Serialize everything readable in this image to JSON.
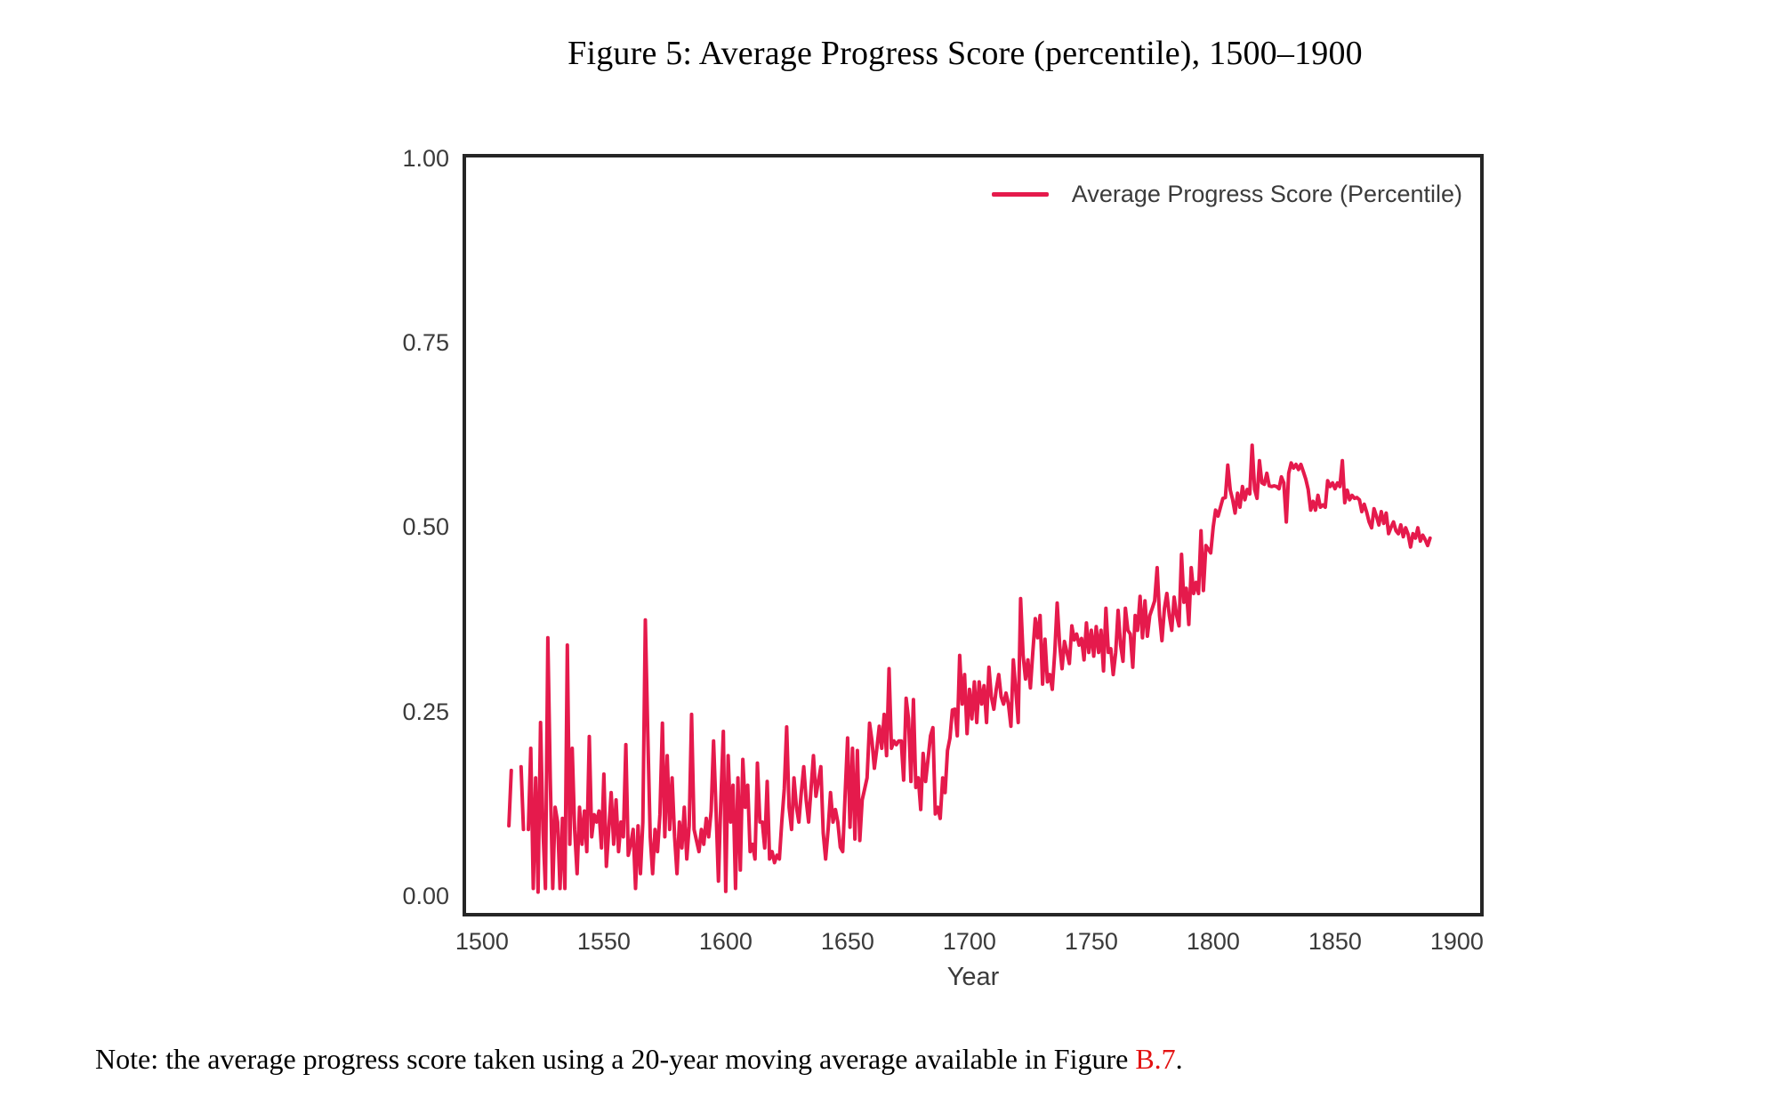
{
  "title": "Figure 5: Average Progress Score (percentile), 1500–1900",
  "note": {
    "prefix": "Note: the average progress score taken using a 20-year moving average available in Figure ",
    "link": "B.7",
    "suffix": "."
  },
  "colors": {
    "line": "#e51a4c",
    "spine": "#262626",
    "tick_label": "#3b3b3b",
    "link_red": "#e31212",
    "background": "#ffffff"
  },
  "chart_data": {
    "type": "line",
    "title": "Figure 5: Average Progress Score (percentile), 1500–1900",
    "xlabel": "Year",
    "ylabel": "",
    "grid": false,
    "xlim": [
      1492,
      1911
    ],
    "ylim": [
      -0.028,
      1.006
    ],
    "x_ticks": [
      1500,
      1550,
      1600,
      1650,
      1700,
      1750,
      1800,
      1850,
      1900
    ],
    "y_ticks": [
      0.0,
      0.25,
      0.5,
      0.75,
      1.0
    ],
    "y_tick_labels": [
      "0.00",
      "0.25",
      "0.50",
      "0.75",
      "1.00"
    ],
    "legend": {
      "position": "upper right",
      "frame": false,
      "entries": [
        {
          "label": "Average Progress Score (Percentile)",
          "color": "#e51a4c"
        }
      ]
    },
    "series": [
      {
        "name": "Average Progress Score (Percentile)",
        "color": "#e51a4c",
        "line_width": 4,
        "segments": [
          {
            "start_year": 1511,
            "step": 1,
            "values": [
              0.095,
              0.17
            ]
          },
          {
            "start_year": 1516,
            "step": 1,
            "values": [
              0.175,
              0.09
            ]
          },
          {
            "start_year": 1519,
            "step": 1,
            "values": [
              0.09,
              0.2,
              0.01,
              0.16,
              0.005,
              0.235,
              0.09,
              0.01,
              0.35,
              0.16,
              0.01,
              0.12,
              0.1,
              0.01,
              0.105,
              0.01,
              0.34,
              0.07,
              0.2,
              0.09,
              0.03,
              0.12,
              0.07,
              0.115,
              0.06,
              0.216,
              0.08,
              0.11,
              0.1,
              0.115,
              0.065,
              0.165,
              0.04,
              0.09,
              0.14,
              0.07,
              0.13,
              0.06,
              0.1,
              0.08,
              0.205,
              0.055,
              0.07,
              0.09,
              0.01,
              0.095,
              0.03,
              0.1,
              0.374,
              0.222,
              0.08,
              0.03,
              0.09,
              0.06,
              0.11,
              0.234,
              0.08,
              0.19,
              0.09,
              0.16,
              0.08,
              0.03,
              0.1,
              0.065,
              0.12,
              0.05,
              0.095,
              0.246,
              0.09,
              0.075,
              0.06,
              0.09,
              0.07,
              0.105,
              0.08,
              0.115,
              0.21,
              0.12,
              0.02,
              0.13,
              0.223,
              0.006,
              0.19,
              0.1,
              0.15,
              0.01,
              0.16,
              0.035,
              0.185,
              0.12,
              0.15,
              0.06,
              0.07,
              0.05,
              0.18,
              0.1,
              0.1,
              0.065,
              0.155,
              0.05,
              0.06,
              0.045,
              0.055,
              0.05,
              0.1,
              0.145,
              0.229,
              0.12,
              0.09,
              0.16,
              0.12,
              0.1,
              0.14,
              0.175,
              0.13,
              0.1,
              0.145,
              0.19,
              0.135,
              0.155,
              0.175,
              0.085,
              0.05,
              0.09,
              0.14,
              0.1,
              0.117,
              0.1,
              0.066,
              0.06,
              0.14,
              0.214,
              0.093,
              0.2,
              0.077,
              0.197,
              0.075,
              0.13,
              0.145,
              0.16,
              0.234,
              0.21,
              0.173,
              0.2,
              0.23,
              0.2,
              0.246,
              0.19,
              0.308,
              0.2,
              0.21,
              0.205,
              0.21,
              0.21,
              0.157,
              0.268,
              0.24,
              0.155,
              0.266,
              0.147,
              0.16,
              0.117,
              0.193,
              0.155,
              0.185,
              0.217,
              0.228,
              0.111,
              0.12,
              0.105,
              0.16,
              0.14,
              0.197,
              0.214,
              0.252,
              0.253,
              0.217,
              0.326,
              0.26,
              0.3,
              0.22,
              0.28,
              0.24,
              0.29,
              0.235,
              0.29,
              0.26,
              0.285,
              0.235,
              0.31,
              0.27,
              0.253,
              0.28,
              0.3,
              0.27,
              0.26,
              0.275,
              0.26,
              0.23,
              0.32,
              0.28,
              0.235,
              0.403,
              0.326,
              0.294,
              0.32,
              0.282,
              0.33,
              0.376,
              0.35,
              0.38,
              0.287,
              0.348,
              0.29,
              0.3,
              0.28,
              0.33,
              0.397,
              0.34,
              0.308,
              0.345,
              0.33,
              0.315,
              0.366,
              0.347,
              0.355,
              0.34,
              0.349,
              0.32,
              0.37,
              0.33,
              0.36,
              0.325,
              0.365,
              0.33,
              0.36,
              0.305,
              0.39,
              0.33,
              0.335,
              0.3,
              0.33,
              0.387,
              0.34,
              0.318,
              0.39,
              0.36,
              0.355,
              0.31,
              0.38,
              0.36,
              0.406,
              0.35,
              0.4,
              0.352,
              0.38,
              0.39,
              0.4,
              0.445,
              0.38,
              0.346,
              0.39,
              0.41,
              0.38,
              0.36,
              0.405,
              0.38,
              0.366,
              0.463,
              0.398,
              0.417,
              0.368,
              0.445,
              0.41,
              0.425,
              0.41,
              0.495,
              0.414,
              0.475,
              0.47,
              0.465,
              0.5,
              0.523,
              0.515,
              0.527,
              0.539,
              0.54,
              0.584,
              0.55,
              0.537,
              0.519,
              0.546,
              0.527,
              0.555,
              0.537,
              0.551,
              0.545,
              0.611,
              0.551,
              0.539,
              0.59,
              0.56,
              0.558,
              0.573,
              0.556,
              0.555,
              0.556,
              0.555,
              0.552,
              0.568,
              0.56,
              0.507,
              0.573,
              0.587,
              0.58,
              0.585,
              0.578,
              0.585,
              0.575,
              0.565,
              0.551,
              0.523,
              0.535,
              0.523,
              0.543,
              0.527,
              0.53,
              0.527,
              0.563,
              0.555,
              0.56,
              0.552,
              0.56,
              0.555,
              0.59,
              0.533,
              0.55,
              0.537,
              0.543,
              0.539,
              0.54,
              0.537,
              0.521,
              0.531,
              0.52,
              0.507,
              0.499,
              0.525,
              0.515,
              0.503,
              0.521,
              0.505,
              0.519,
              0.491,
              0.5,
              0.507,
              0.495,
              0.491,
              0.503,
              0.487,
              0.499,
              0.49,
              0.473,
              0.491,
              0.485,
              0.499,
              0.481,
              0.489,
              0.483,
              0.475,
              0.485
            ]
          }
        ]
      }
    ]
  }
}
